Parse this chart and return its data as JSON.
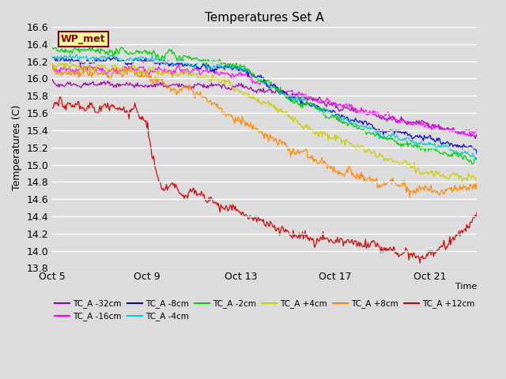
{
  "title": "Temperatures Set A",
  "ylabel": "Temperatures (C)",
  "xlabel": "Time",
  "ylim": [
    13.8,
    16.6
  ],
  "yticks": [
    13.8,
    14.0,
    14.2,
    14.4,
    14.6,
    14.8,
    15.0,
    15.2,
    15.4,
    15.6,
    15.8,
    16.0,
    16.2,
    16.4,
    16.6
  ],
  "xtick_labels": [
    "Oct 5",
    "Oct 9",
    "Oct 13",
    "Oct 17",
    "Oct 21"
  ],
  "xtick_positions": [
    0,
    4,
    8,
    12,
    16
  ],
  "xlim": [
    0,
    18
  ],
  "background_color": "#dcdcdc",
  "grid_color": "#ffffff",
  "series": [
    {
      "label": "TC_A -32cm",
      "color": "#9900aa"
    },
    {
      "label": "TC_A -16cm",
      "color": "#ff00ff"
    },
    {
      "label": "TC_A -8cm",
      "color": "#0000cc"
    },
    {
      "label": "TC_A -4cm",
      "color": "#00cccc"
    },
    {
      "label": "TC_A -2cm",
      "color": "#00cc00"
    },
    {
      "label": "TC_A +4cm",
      "color": "#cccc00"
    },
    {
      "label": "TC_A +8cm",
      "color": "#ff8800"
    },
    {
      "label": "TC_A +12cm",
      "color": "#cc0000"
    }
  ],
  "wp_met_label": "WP_met",
  "wp_met_bg": "#ffff99",
  "wp_met_border": "#880000",
  "n_points": 500,
  "legend_ncol": 6,
  "title_fontsize": 11,
  "tick_fontsize": 9,
  "ylabel_fontsize": 9
}
